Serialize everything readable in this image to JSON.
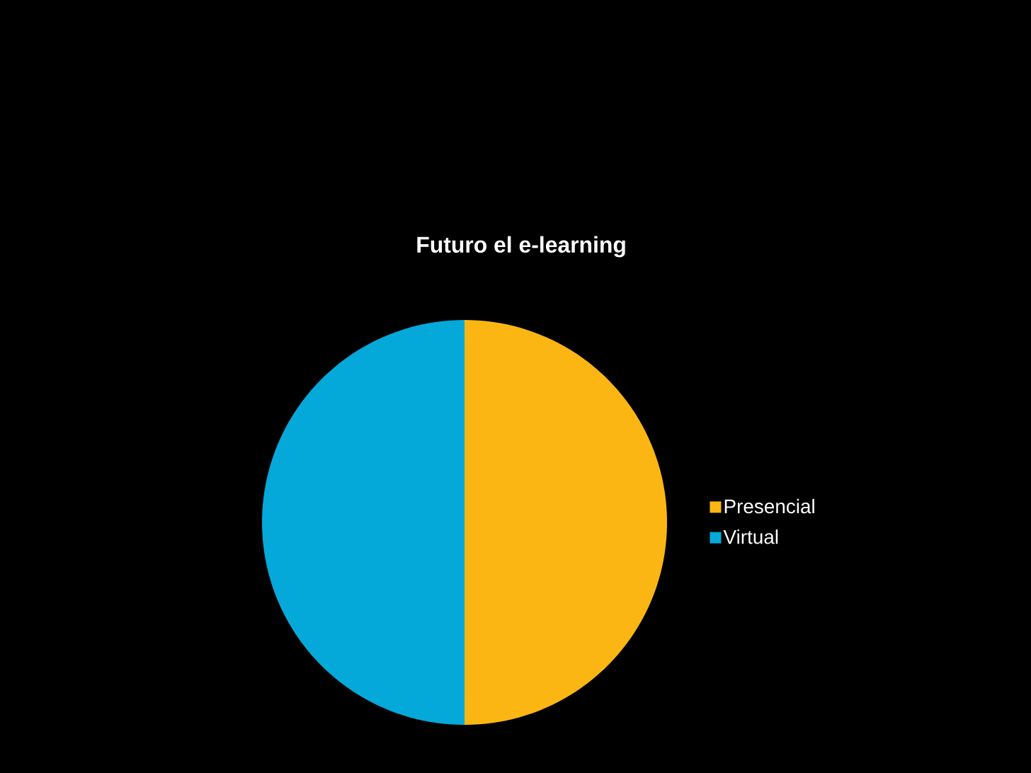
{
  "chart_data": {
    "type": "pie",
    "title": "Futuro el e-learning",
    "categories": [
      "Presencial",
      "Virtual"
    ],
    "values": [
      50,
      50
    ],
    "colors": [
      "#fbb614",
      "#04a9da"
    ],
    "legend": "right"
  }
}
